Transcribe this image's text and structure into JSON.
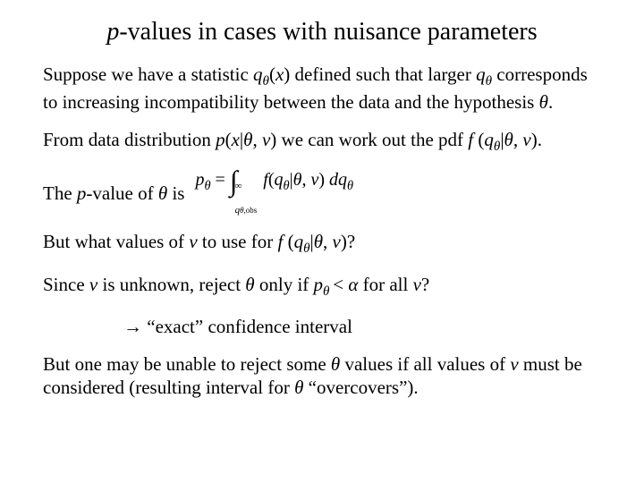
{
  "title_pre": "p",
  "title_post": "-values in cases with nuisance parameters",
  "p1_a": "Suppose we have a statistic ",
  "p1_q": "q",
  "p1_th": "θ",
  "p1_b": "(",
  "p1_x": "x",
  "p1_c": ") defined such that larger ",
  "p1_q2": "q",
  "p1_th2": "θ",
  "p1_d": " corresponds to increasing incompatibility between the data and the hypothesis ",
  "p1_th3": "θ",
  "p1_e": ".",
  "p2_a": "From data distribution ",
  "p2_p": "p",
  "p2_b": "(",
  "p2_x": "x",
  "p2_c": "|",
  "p2_th": "θ",
  "p2_d": ", ",
  "p2_nu": "ν",
  "p2_e": ") we can work out the pdf  ",
  "p2_f": "f ",
  "p2_g": "(",
  "p2_q": "q",
  "p2_th2": "θ",
  "p2_h": "|",
  "p2_th3": "θ",
  "p2_i": ", ",
  "p2_nu2": "ν",
  "p2_j": ").",
  "p3_a": "The ",
  "p3_p": "p",
  "p3_b": "-value of ",
  "p3_th": "θ",
  "p3_c": " is",
  "f_lhs_p": "p",
  "f_lhs_th": "θ",
  "f_eq": " = ",
  "f_upper": "∞",
  "f_lower": "q",
  "f_lower_th": "θ",
  "f_lower_obs": ",obs",
  "f_f": "f",
  "f_open": "(",
  "f_q": "q",
  "f_qth": "θ",
  "f_bar": "|",
  "f_th": "θ",
  "f_comma": ", ",
  "f_nu": "ν",
  "f_close": ") ",
  "f_dq": "dq",
  "f_dqth": "θ",
  "p4_a": "But what values of ",
  "p4_nu": "ν",
  "p4_b": " to use for ",
  "p4_f": "f ",
  "p4_c": "(",
  "p4_q": "q",
  "p4_th": "θ",
  "p4_d": "|",
  "p4_th2": "θ",
  "p4_e": ", ",
  "p4_nu2": "ν",
  "p4_g": ")?",
  "p5_a": "Since ",
  "p5_nu": "ν",
  "p5_b": " is unknown, reject ",
  "p5_th": "θ",
  "p5_c": " only if ",
  "p5_p": "p",
  "p5_pth": "θ ",
  "p5_d": "< ",
  "p5_al": "α",
  "p5_e": " for all ",
  "p5_nu2": "ν",
  "p5_f": "?",
  "p6": "→ “exact” confidence interval",
  "p7_a": "But one may be unable to reject some ",
  "p7_th": "θ",
  "p7_b": " values if all values of ",
  "p7_nu": "ν",
  "p7_c": " must be considered (resulting interval for ",
  "p7_th2": "θ",
  "p7_d": " “overcovers”)."
}
